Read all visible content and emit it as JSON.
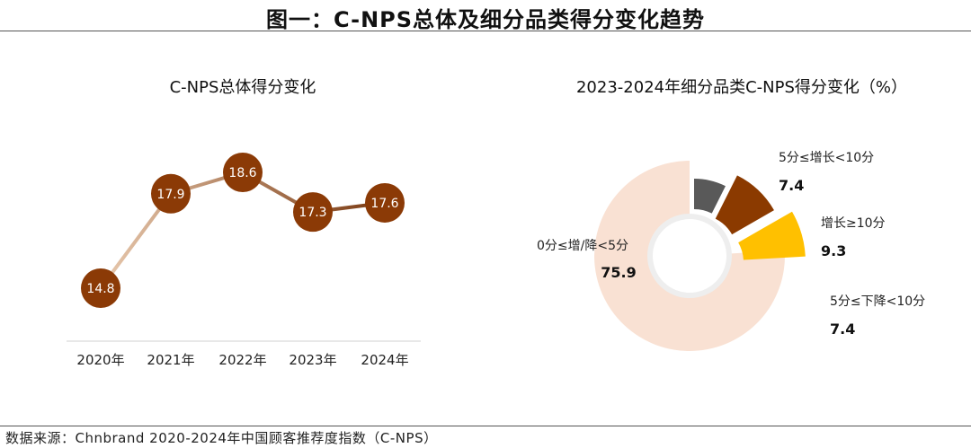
{
  "header": {
    "title": "图一：C-NPS总体及细分品类得分变化趋势"
  },
  "footer": {
    "source": "数据来源：Chnbrand 2020-2024年中国顾客推荐度指数（C-NPS）"
  },
  "chart_data": [
    {
      "type": "line",
      "title": "C-NPS总体得分变化",
      "categories": [
        "2020年",
        "2021年",
        "2022年",
        "2023年",
        "2024年"
      ],
      "values": [
        14.8,
        17.9,
        18.6,
        17.3,
        17.6
      ],
      "value_labels": [
        "14.8",
        "17.9",
        "18.6",
        "17.3",
        "17.6"
      ],
      "colors": {
        "marker": "#8B3A06",
        "line_start": "#E8C9AE",
        "line_end": "#7A3A12"
      }
    },
    {
      "type": "pie",
      "title": "2023-2024年细分品类C-NPS得分变化（%）",
      "slices": [
        {
          "label": "0分≤增/降<5分",
          "value": 75.9,
          "value_label": "75.9",
          "color": "#F9E1D3"
        },
        {
          "label": "5分≤增长<10分",
          "value": 7.4,
          "value_label": "7.4",
          "color": "#595959"
        },
        {
          "label": "增长≥10分",
          "value": 9.3,
          "value_label": "9.3",
          "color": "#8B3A00"
        },
        {
          "label": "5分≤下降<10分",
          "value": 7.4,
          "value_label": "7.4",
          "color": "#FFC000"
        }
      ]
    }
  ]
}
